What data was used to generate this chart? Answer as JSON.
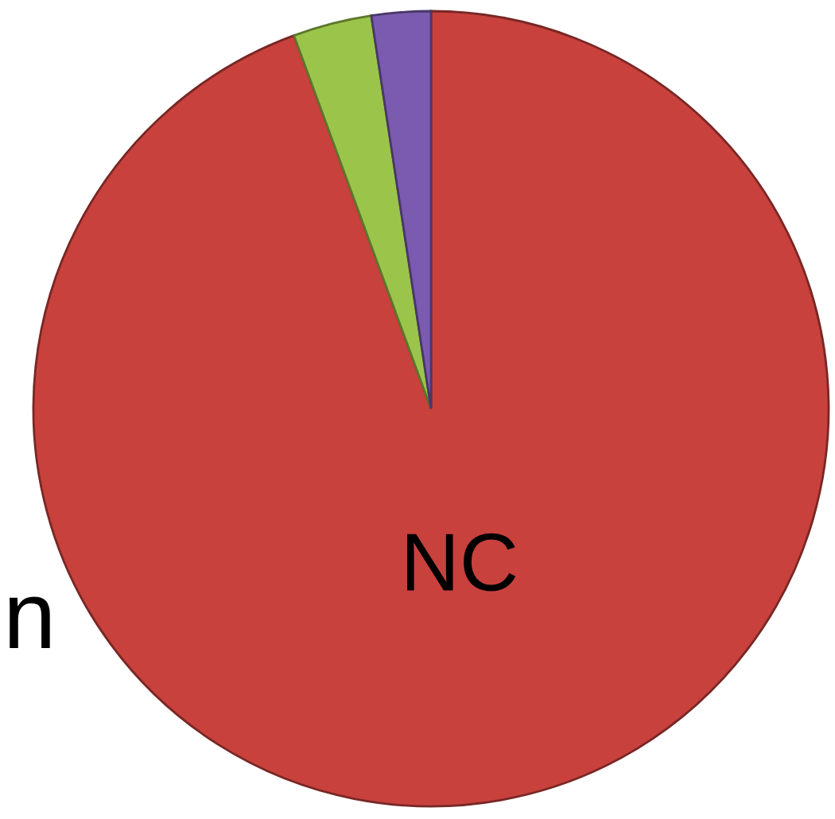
{
  "chart_data": {
    "type": "pie",
    "categories": [
      "NC",
      null,
      null
    ],
    "values": [
      94.4,
      3.2,
      2.4
    ],
    "colors": [
      "#c8413d",
      "#9bc54a",
      "#7a5bb0"
    ],
    "annotations": [
      "n"
    ]
  }
}
